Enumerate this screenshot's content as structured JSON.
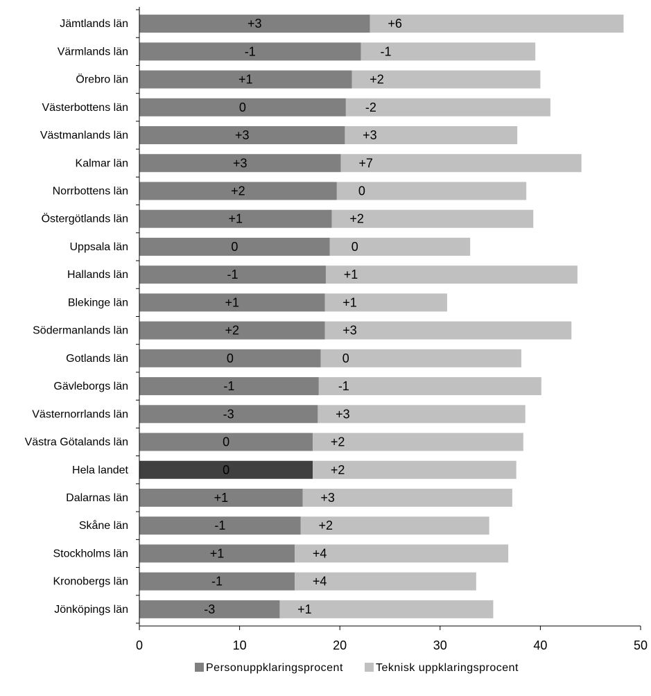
{
  "chart_data": {
    "type": "bar",
    "orientation": "horizontal",
    "stacked": true,
    "categories": [
      "Jämtlands län",
      "Värmlands län",
      "Örebro län",
      "Västerbottens län",
      "Västmanlands län",
      "Kalmar län",
      "Norrbottens län",
      "Östergötlands län",
      "Uppsala län",
      "Hallands län",
      "Blekinge län",
      "Södermanlands län",
      "Gotlands län",
      "Gävleborgs län",
      "Västernorrlands län",
      "Västra Götalands län",
      "Hela landet",
      "Dalarnas län",
      "Skåne län",
      "Stockholms län",
      "Kronobergs län",
      "Jönköpings län"
    ],
    "highlight_category": "Hela landet",
    "series": [
      {
        "name": "Personuppklaringsprocent",
        "color": "#808080",
        "highlight_color": "#404040",
        "values": [
          23.0,
          22.1,
          21.2,
          20.6,
          20.5,
          20.1,
          19.7,
          19.2,
          19.0,
          18.6,
          18.5,
          18.5,
          18.1,
          17.9,
          17.8,
          17.3,
          17.3,
          16.3,
          16.1,
          15.5,
          15.5,
          14.0
        ],
        "labels": [
          "+3",
          "-1",
          "+1",
          "0",
          "+3",
          "+3",
          "+2",
          "+1",
          "0",
          "-1",
          "+1",
          "+2",
          "0",
          "-1",
          "-3",
          "0",
          "0",
          "+1",
          "-1",
          "+1",
          "-1",
          "-3"
        ]
      },
      {
        "name": "Teknisk uppklaringsprocent",
        "color": "#c0c0c0",
        "values": [
          25.3,
          17.4,
          18.8,
          20.4,
          17.2,
          24.0,
          18.9,
          20.1,
          14.0,
          25.1,
          12.2,
          24.6,
          20.0,
          22.2,
          20.7,
          21.0,
          20.3,
          20.9,
          18.8,
          21.3,
          18.1,
          21.3
        ],
        "labels": [
          "+6",
          "-1",
          "+2",
          "-2",
          "+3",
          "+7",
          "0",
          "+2",
          "0",
          "+1",
          "+1",
          "+3",
          "0",
          "-1",
          "+3",
          "+2",
          "+2",
          "+3",
          "+2",
          "+4",
          "+4",
          "+1"
        ]
      }
    ],
    "xlim": [
      0,
      50
    ],
    "xticks": [
      "0",
      "10",
      "20",
      "30",
      "40",
      "50"
    ],
    "xlabel": "",
    "ylabel": "",
    "title": "",
    "grid": false,
    "legend_position": "bottom"
  }
}
